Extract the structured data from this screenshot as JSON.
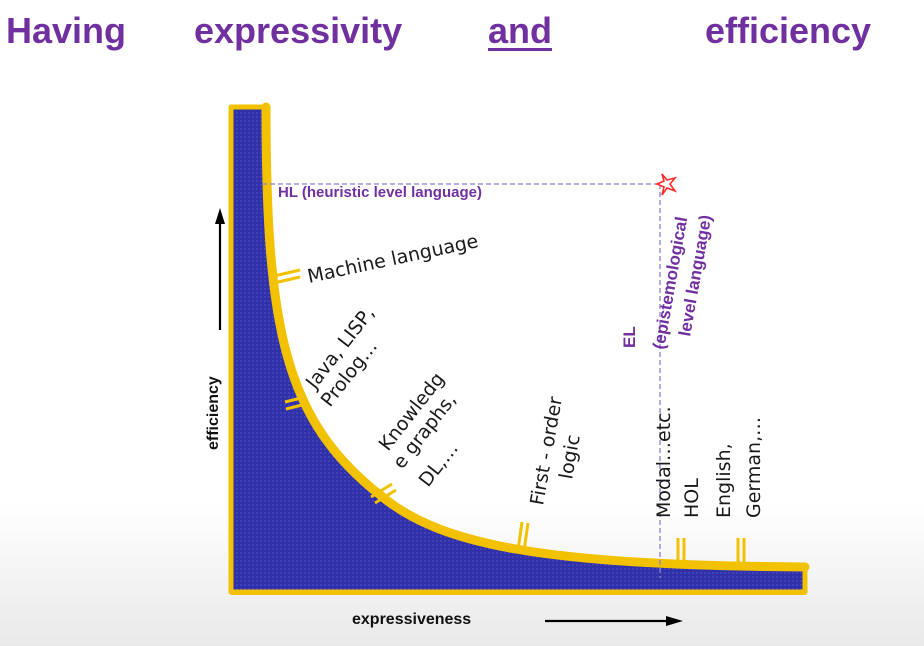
{
  "title": {
    "words": [
      "Having",
      "expressivity",
      "and",
      "efficiency"
    ]
  },
  "diagram": {
    "hl_label": "HL (heuristic level language)",
    "el_label_1": "EL",
    "el_label_2": "(epistemological",
    "el_label_3": "level language)",
    "y_axis_label": "efficiency",
    "x_axis_label": "expressiveness",
    "languages": {
      "machine": "Machine language",
      "java_1": "Java, LISP,",
      "java_2": "Prolog…",
      "kg_1": "Knowledg",
      "kg_2": "e graphs,",
      "kg_3": "DL,…",
      "fol_1": "First - order",
      "fol_2": "logic",
      "modal": "Modal…etc.",
      "hol": "HOL",
      "nat_1": "English,",
      "nat_2": "German,…"
    },
    "colors": {
      "fill": "#3333aa",
      "curve": "#f2c200",
      "title": "#7030a0",
      "accent_star": "#ff2a2a"
    }
  }
}
